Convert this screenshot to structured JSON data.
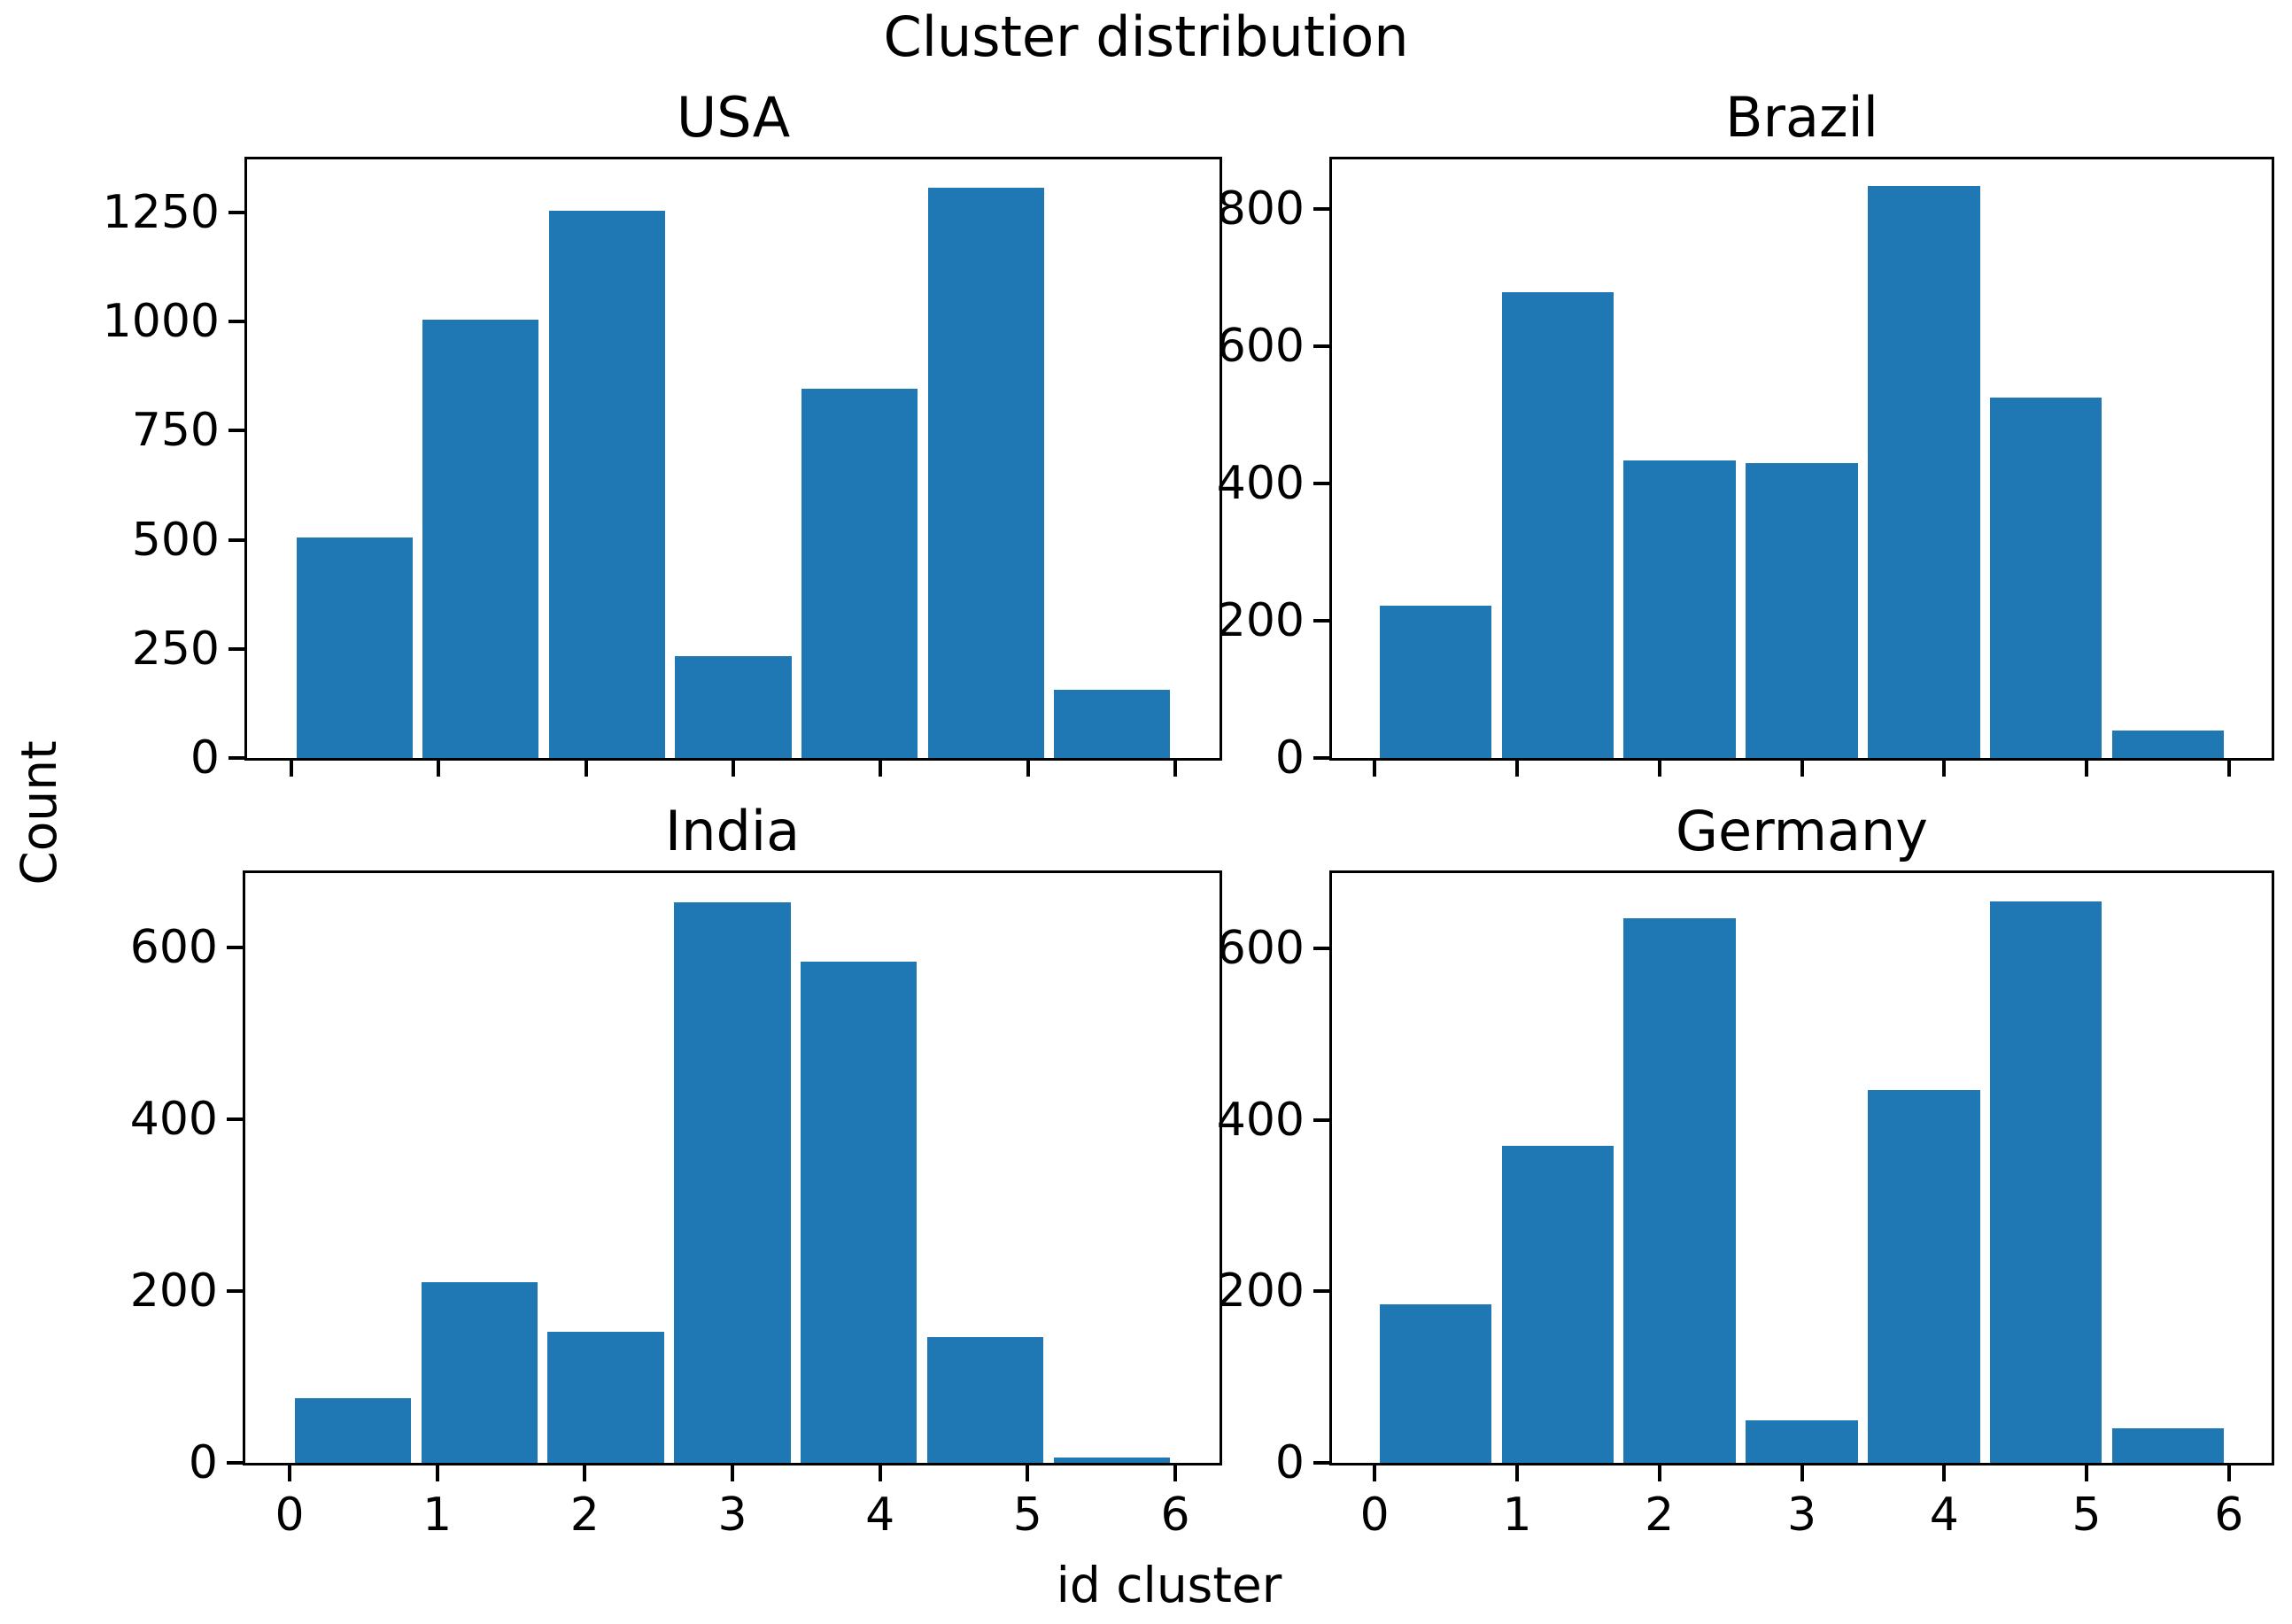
{
  "figure": {
    "title": "Cluster distribution",
    "xlabel": "id cluster",
    "ylabel": "Count",
    "bar_color": "#1f77b4",
    "text_color": "#000000",
    "background": "#ffffff"
  },
  "chart_data": [
    {
      "type": "bar",
      "title": "USA",
      "categories": [
        0,
        1,
        2,
        3,
        4,
        5,
        6
      ],
      "values": [
        505,
        1004,
        1253,
        233,
        846,
        1306,
        156
      ],
      "yticks": [
        0,
        250,
        500,
        750,
        1000,
        1250
      ],
      "ylim": [
        0,
        1371
      ],
      "xticks": [
        0,
        1,
        2,
        3,
        4,
        5,
        6
      ],
      "xlim": [
        -0.3,
        6.3
      ],
      "bins": 7,
      "bin_range": [
        0,
        6
      ],
      "xticklabels_visible": false,
      "grid": false,
      "legend": false
    },
    {
      "type": "bar",
      "title": "Brazil",
      "categories": [
        0,
        1,
        2,
        3,
        4,
        5,
        6
      ],
      "values": [
        222,
        678,
        434,
        430,
        833,
        525,
        40
      ],
      "yticks": [
        0,
        200,
        400,
        600,
        800
      ],
      "ylim": [
        0,
        872
      ],
      "xticks": [
        0,
        1,
        2,
        3,
        4,
        5,
        6
      ],
      "xlim": [
        -0.3,
        6.3
      ],
      "bins": 7,
      "bin_range": [
        0,
        6
      ],
      "xticklabels_visible": false,
      "grid": false,
      "legend": false
    },
    {
      "type": "bar",
      "title": "India",
      "categories": [
        0,
        1,
        2,
        3,
        4,
        5,
        6
      ],
      "values": [
        75,
        210,
        152,
        652,
        583,
        146,
        6
      ],
      "yticks": [
        0,
        200,
        400,
        600
      ],
      "ylim": [
        0,
        686
      ],
      "xticks": [
        0,
        1,
        2,
        3,
        4,
        5,
        6
      ],
      "xlim": [
        -0.3,
        6.3
      ],
      "bins": 7,
      "bin_range": [
        0,
        6
      ],
      "xticklabels_visible": true,
      "grid": false,
      "legend": false
    },
    {
      "type": "bar",
      "title": "Germany",
      "categories": [
        0,
        1,
        2,
        3,
        4,
        5,
        6
      ],
      "values": [
        185,
        370,
        635,
        50,
        435,
        655,
        40
      ],
      "yticks": [
        0,
        200,
        400,
        600
      ],
      "ylim": [
        0,
        688
      ],
      "xticks": [
        0,
        1,
        2,
        3,
        4,
        5,
        6
      ],
      "xlim": [
        -0.3,
        6.3
      ],
      "bins": 7,
      "bin_range": [
        0,
        6
      ],
      "xticklabels_visible": true,
      "grid": false,
      "legend": false
    }
  ]
}
